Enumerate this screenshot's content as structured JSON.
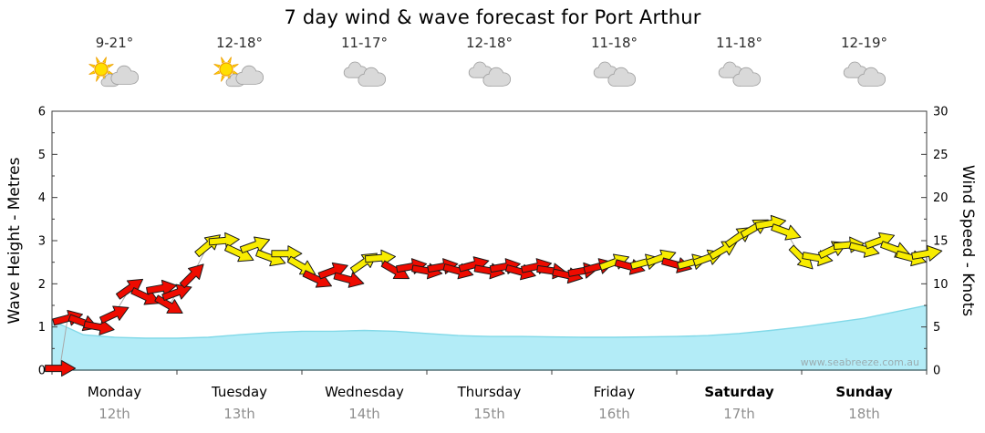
{
  "title": "7 day wind & wave forecast for Port Arthur",
  "watermark": "www.seabreeze.com.au",
  "axes": {
    "left_label": "Wave Height - Metres",
    "right_label": "Wind Speed - Knots",
    "left_ticks": [
      0,
      1,
      2,
      3,
      4,
      5,
      6
    ],
    "right_ticks": [
      0,
      5,
      10,
      15,
      20,
      25,
      30
    ]
  },
  "days": [
    {
      "name": "Monday",
      "date": "12th",
      "temp": "9-21°",
      "icon": "sun-cloud",
      "bold": false
    },
    {
      "name": "Tuesday",
      "date": "13th",
      "temp": "12-18°",
      "icon": "sun-cloud",
      "bold": false
    },
    {
      "name": "Wednesday",
      "date": "14th",
      "temp": "11-17°",
      "icon": "clouds",
      "bold": false
    },
    {
      "name": "Thursday",
      "date": "15th",
      "temp": "12-18°",
      "icon": "clouds",
      "bold": false
    },
    {
      "name": "Friday",
      "date": "16th",
      "temp": "11-18°",
      "icon": "clouds",
      "bold": false
    },
    {
      "name": "Saturday",
      "date": "17th",
      "temp": "11-18°",
      "icon": "clouds",
      "bold": true
    },
    {
      "name": "Sunday",
      "date": "18th",
      "temp": "12-19°",
      "icon": "clouds",
      "bold": true
    }
  ],
  "colors": {
    "wave_fill": "#b3ecf7",
    "wave_stroke": "#82d9e8",
    "arrow_red": "#ee0b00",
    "arrow_yellow": "#f8ec00",
    "arrow_outline": "#1a1a1a",
    "axis_line": "#3c3c3c",
    "connector": "#a8a8a8",
    "watermark_text": "#9aacb0",
    "date_text": "#8f8f8f"
  },
  "chart_data": {
    "type": "area+wind-arrows",
    "title": "7 day wind & wave forecast for Port Arthur",
    "categories": [
      "Monday 12th",
      "Tuesday 13th",
      "Wednesday 14th",
      "Thursday 15th",
      "Friday 16th",
      "Saturday 17th",
      "Sunday 18th"
    ],
    "x_unit": "hours",
    "x_range": [
      0,
      168
    ],
    "ylim_wave_m": [
      0,
      6
    ],
    "ylim_wind_knots": [
      0,
      30
    ],
    "legend": "arrow color: red = wind direction band 1, yellow = wind direction band 2; cyan area = wave height",
    "wave_height_m": {
      "x": [
        0,
        6,
        12,
        18,
        24,
        30,
        36,
        42,
        48,
        54,
        60,
        66,
        72,
        78,
        84,
        90,
        96,
        102,
        108,
        114,
        120,
        126,
        132,
        138,
        144,
        150,
        156,
        162,
        168
      ],
      "y": [
        1.15,
        0.82,
        0.76,
        0.74,
        0.74,
        0.76,
        0.82,
        0.87,
        0.9,
        0.9,
        0.92,
        0.9,
        0.85,
        0.8,
        0.78,
        0.78,
        0.77,
        0.76,
        0.76,
        0.77,
        0.78,
        0.8,
        0.85,
        0.92,
        1.0,
        1.1,
        1.2,
        1.35,
        1.5
      ]
    },
    "wind_points_h_kn_dir_color": [
      [
        1.5,
        0.2,
        0,
        "r"
      ],
      [
        3,
        6,
        -15,
        "r"
      ],
      [
        6,
        5.5,
        20,
        "r"
      ],
      [
        9,
        5,
        10,
        "r"
      ],
      [
        12,
        6.5,
        -25,
        "r"
      ],
      [
        15,
        9.5,
        -35,
        "r"
      ],
      [
        18,
        8.5,
        25,
        "r"
      ],
      [
        21,
        9.5,
        -10,
        "r"
      ],
      [
        22.5,
        7.5,
        30,
        "r"
      ],
      [
        24,
        9,
        -20,
        "r"
      ],
      [
        27,
        11,
        -45,
        "r"
      ],
      [
        30,
        14.5,
        -40,
        "y"
      ],
      [
        33,
        15,
        -5,
        "y"
      ],
      [
        36,
        13.5,
        25,
        "y"
      ],
      [
        39,
        14.5,
        -20,
        "y"
      ],
      [
        42,
        13,
        20,
        "y"
      ],
      [
        45,
        13.5,
        0,
        "y"
      ],
      [
        48,
        12,
        30,
        "y"
      ],
      [
        51,
        10.5,
        25,
        "r"
      ],
      [
        54,
        11.5,
        -20,
        "r"
      ],
      [
        57,
        10.5,
        15,
        "r"
      ],
      [
        60,
        12.5,
        -35,
        "y"
      ],
      [
        63,
        13,
        -5,
        "y"
      ],
      [
        66,
        11.5,
        30,
        "r"
      ],
      [
        69,
        12,
        -10,
        "r"
      ],
      [
        72,
        11.5,
        10,
        "r"
      ],
      [
        75,
        12,
        -10,
        "r"
      ],
      [
        78,
        11.5,
        15,
        "r"
      ],
      [
        81,
        12.2,
        -15,
        "r"
      ],
      [
        84,
        11.5,
        10,
        "r"
      ],
      [
        87,
        12,
        -10,
        "r"
      ],
      [
        90,
        11.4,
        15,
        "r"
      ],
      [
        93,
        12,
        -12,
        "r"
      ],
      [
        96,
        11.5,
        8,
        "r"
      ],
      [
        99,
        11,
        12,
        "r"
      ],
      [
        102,
        11.5,
        -10,
        "r"
      ],
      [
        105,
        12,
        -15,
        "r"
      ],
      [
        108,
        12.5,
        -20,
        "y"
      ],
      [
        111,
        12,
        15,
        "r"
      ],
      [
        114,
        12.5,
        -15,
        "y"
      ],
      [
        117,
        13,
        -20,
        "y"
      ],
      [
        120,
        12.2,
        15,
        "r"
      ],
      [
        123,
        12.5,
        -15,
        "y"
      ],
      [
        126,
        13,
        -20,
        "y"
      ],
      [
        129,
        14,
        -30,
        "y"
      ],
      [
        132,
        15.5,
        -35,
        "y"
      ],
      [
        135,
        16.5,
        -30,
        "y"
      ],
      [
        138,
        17,
        -10,
        "y"
      ],
      [
        141,
        16,
        20,
        "y"
      ],
      [
        144,
        13,
        45,
        "y"
      ],
      [
        147,
        13,
        10,
        "y"
      ],
      [
        150,
        14,
        -25,
        "y"
      ],
      [
        153,
        14.5,
        -5,
        "y"
      ],
      [
        156,
        14,
        15,
        "y"
      ],
      [
        159,
        15,
        -20,
        "y"
      ],
      [
        162,
        14,
        20,
        "y"
      ],
      [
        165,
        13,
        15,
        "y"
      ],
      [
        168,
        13.5,
        -10,
        "y"
      ]
    ]
  }
}
